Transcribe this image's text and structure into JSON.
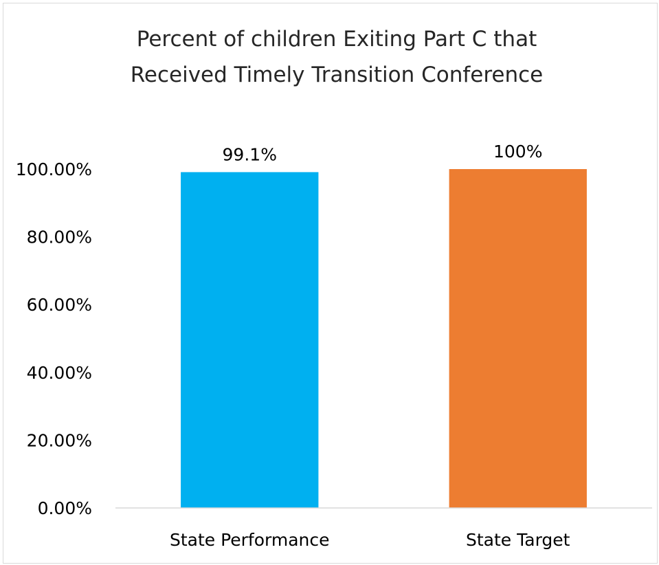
{
  "chart_data": {
    "type": "bar",
    "title_lines": [
      "Percent of children Exiting Part C that",
      "Received Timely Transition Conference"
    ],
    "categories": [
      "State Performance",
      "State Target"
    ],
    "values": [
      99.1,
      100
    ],
    "data_labels": [
      "99.1%",
      "100%"
    ],
    "bar_colors": [
      "#00B0F0",
      "#ED7D31"
    ],
    "ylim": [
      0,
      100
    ],
    "y_ticks": [
      0,
      20,
      40,
      60,
      80,
      100
    ],
    "y_tick_labels": [
      "0.00%",
      "20.00%",
      "40.00%",
      "60.00%",
      "80.00%",
      "100.00%"
    ],
    "grid": false,
    "legend": "none"
  }
}
